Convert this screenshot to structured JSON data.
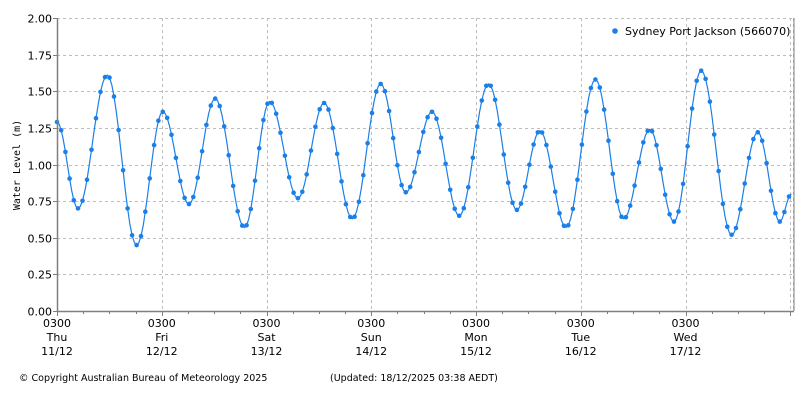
{
  "chart_data": {
    "type": "line",
    "title": "",
    "xlabel": "",
    "ylabel": "Water Level (m)",
    "ylim": [
      0.0,
      2.0
    ],
    "yticks": [
      "0.00",
      "0.25",
      "0.50",
      "0.75",
      "1.00",
      "1.25",
      "1.50",
      "1.75",
      "2.00"
    ],
    "grid": true,
    "legend_position": "top-right",
    "series": [
      {
        "name": "Sydney Port Jackson (566070)",
        "color": "#1a7fe8",
        "marker": "dot",
        "extremes_note": "Approximate high/low tide turning points read from plot; x in days since 03:00 Thu 11/12",
        "extremes": [
          {
            "x": 0.0,
            "y": 1.29
          },
          {
            "x": 0.2,
            "y": 0.7
          },
          {
            "x": 0.48,
            "y": 1.61
          },
          {
            "x": 0.76,
            "y": 0.45
          },
          {
            "x": 1.01,
            "y": 1.36
          },
          {
            "x": 1.26,
            "y": 0.73
          },
          {
            "x": 1.51,
            "y": 1.45
          },
          {
            "x": 1.79,
            "y": 0.57
          },
          {
            "x": 2.03,
            "y": 1.43
          },
          {
            "x": 2.3,
            "y": 0.77
          },
          {
            "x": 2.55,
            "y": 1.42
          },
          {
            "x": 2.82,
            "y": 0.63
          },
          {
            "x": 3.09,
            "y": 1.55
          },
          {
            "x": 3.33,
            "y": 0.81
          },
          {
            "x": 3.58,
            "y": 1.36
          },
          {
            "x": 3.84,
            "y": 0.65
          },
          {
            "x": 4.12,
            "y": 1.55
          },
          {
            "x": 4.39,
            "y": 0.69
          },
          {
            "x": 4.61,
            "y": 1.23
          },
          {
            "x": 4.86,
            "y": 0.57
          },
          {
            "x": 5.14,
            "y": 1.58
          },
          {
            "x": 5.41,
            "y": 0.63
          },
          {
            "x": 5.66,
            "y": 1.24
          },
          {
            "x": 5.89,
            "y": 0.61
          },
          {
            "x": 6.15,
            "y": 1.64
          },
          {
            "x": 6.44,
            "y": 0.52
          },
          {
            "x": 6.69,
            "y": 1.22
          },
          {
            "x": 6.9,
            "y": 0.61
          },
          {
            "x": 7.01,
            "y": 0.8
          }
        ]
      }
    ],
    "x_ticks": [
      {
        "time": "0300",
        "day": "Thu",
        "date": "11/12"
      },
      {
        "time": "0300",
        "day": "Fri",
        "date": "12/12"
      },
      {
        "time": "0300",
        "day": "Sat",
        "date": "13/12"
      },
      {
        "time": "0300",
        "day": "Sun",
        "date": "14/12"
      },
      {
        "time": "0300",
        "day": "Mon",
        "date": "15/12"
      },
      {
        "time": "0300",
        "day": "Tue",
        "date": "16/12"
      },
      {
        "time": "0300",
        "day": "Wed",
        "date": "17/12"
      }
    ],
    "xlim_days": [
      0,
      7.03
    ]
  },
  "legend": {
    "label": "Sydney Port Jackson (566070)"
  },
  "footer": {
    "copyright": "© Copyright Australian Bureau of Meteorology 2025",
    "updated": "(Updated: 18/12/2025 03:38 AEDT)"
  },
  "colors": {
    "series": "#1a7fe8",
    "grid": "#bdbdbd",
    "axis": "#808080"
  }
}
